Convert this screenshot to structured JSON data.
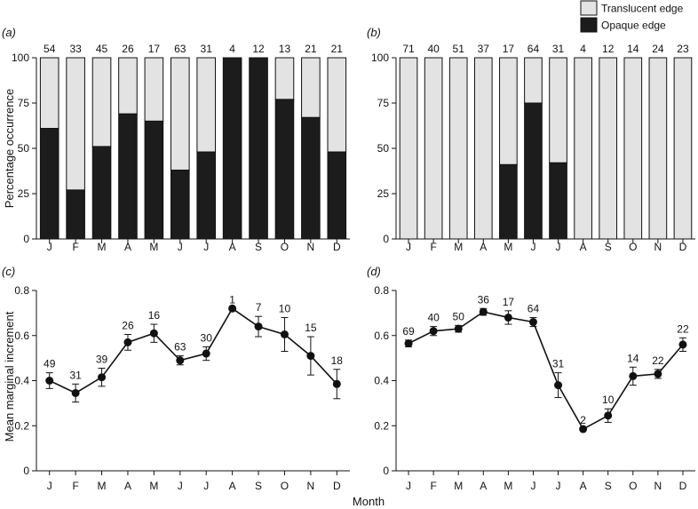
{
  "figure": {
    "ylabel_top": "Percentage occurrence",
    "ylabel_bottom": "Mean marginal increment",
    "xlabel": "Month"
  },
  "legend": {
    "placement": "top-right",
    "items": [
      {
        "label": "Translucent edge",
        "color": "#e3e3e3"
      },
      {
        "label": "Opaque edge",
        "color": "#1c1c1c"
      }
    ]
  },
  "colors": {
    "translucent": "#e3e3e3",
    "opaque": "#1c1c1c",
    "line": "#111111"
  },
  "chart_data": [
    {
      "panel": "(a)",
      "type": "bar",
      "stacked": true,
      "categories": [
        "J",
        "F",
        "M",
        "A",
        "M",
        "J",
        "J",
        "A",
        "S",
        "O",
        "N",
        "D"
      ],
      "series": [
        {
          "name": "Opaque edge",
          "values": [
            61,
            27,
            51,
            69,
            65,
            38,
            48,
            100,
            100,
            77,
            67,
            48
          ]
        },
        {
          "name": "Translucent edge",
          "values": [
            39,
            73,
            49,
            31,
            35,
            62,
            52,
            0,
            0,
            23,
            33,
            52
          ]
        }
      ],
      "sample_sizes": [
        "54",
        "33",
        "45",
        "26",
        "17",
        "63",
        "31",
        "4",
        "12",
        "13",
        "21",
        "21"
      ],
      "ylim": [
        0,
        100
      ],
      "yticks": [
        "0",
        "25",
        "50",
        "75",
        "100"
      ]
    },
    {
      "panel": "(b)",
      "type": "bar",
      "stacked": true,
      "categories": [
        "J",
        "F",
        "M",
        "A",
        "M",
        "J",
        "J",
        "A",
        "S",
        "O",
        "N",
        "D"
      ],
      "series": [
        {
          "name": "Opaque edge",
          "values": [
            0,
            0,
            0,
            0,
            41,
            75,
            42,
            0,
            0,
            0,
            0,
            0
          ]
        },
        {
          "name": "Translucent edge",
          "values": [
            100,
            100,
            100,
            100,
            59,
            25,
            58,
            100,
            100,
            100,
            100,
            100
          ]
        }
      ],
      "sample_sizes": [
        "71",
        "40",
        "51",
        "37",
        "17",
        "64",
        "31",
        "4",
        "12",
        "14",
        "24",
        "23"
      ],
      "ylim": [
        0,
        100
      ],
      "yticks": [
        "0",
        "25",
        "50",
        "75",
        "100"
      ]
    },
    {
      "panel": "(c)",
      "type": "line",
      "categories": [
        "J",
        "F",
        "M",
        "A",
        "M",
        "J",
        "J",
        "A",
        "S",
        "O",
        "N",
        "D"
      ],
      "values": [
        0.4,
        0.345,
        0.415,
        0.57,
        0.61,
        0.49,
        0.52,
        0.72,
        0.64,
        0.605,
        0.51,
        0.385
      ],
      "error": [
        0.035,
        0.04,
        0.04,
        0.035,
        0.04,
        0.02,
        0.03,
        0.0,
        0.045,
        0.075,
        0.085,
        0.065
      ],
      "sample_sizes": [
        "49",
        "31",
        "39",
        "26",
        "16",
        "63",
        "30",
        "1",
        "7",
        "10",
        "15",
        "18"
      ],
      "ylim": [
        0,
        0.8
      ],
      "yticks": [
        "0",
        "0.2",
        "0.4",
        "0.6",
        "0.8"
      ]
    },
    {
      "panel": "(d)",
      "type": "line",
      "categories": [
        "J",
        "F",
        "M",
        "A",
        "M",
        "J",
        "J",
        "A",
        "S",
        "O",
        "N",
        "D"
      ],
      "values": [
        0.565,
        0.62,
        0.63,
        0.705,
        0.68,
        0.66,
        0.38,
        0.185,
        0.245,
        0.42,
        0.43,
        0.56
      ],
      "error": [
        0.015,
        0.02,
        0.015,
        0.015,
        0.03,
        0.02,
        0.055,
        0.0,
        0.03,
        0.04,
        0.02,
        0.03
      ],
      "sample_sizes": [
        "69",
        "40",
        "50",
        "36",
        "17",
        "64",
        "31",
        "2",
        "10",
        "14",
        "22",
        "22"
      ],
      "ylim": [
        0,
        0.8
      ],
      "yticks": [
        "0",
        "0.2",
        "0.4",
        "0.6",
        "0.8"
      ]
    }
  ]
}
